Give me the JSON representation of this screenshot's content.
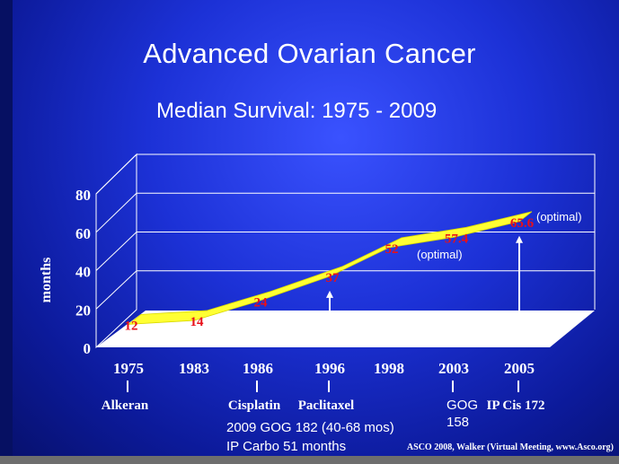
{
  "title": "Advanced Ovarian Cancer",
  "subtitle": "Median Survival: 1975 - 2009",
  "footnote": {
    "line1": "2009 GOG 182 (40-68 mos)",
    "line2": "IP Carbo 51 months"
  },
  "citation": "ASCO 2008, Walker (Virtual Meeting, www.Asco.org)",
  "colors": {
    "background": "#1c31d6",
    "ribbon": "#ffff33",
    "floor": "#ffffff",
    "value_labels": "#e8101a",
    "text": "#ffffff"
  },
  "chart_data": {
    "type": "area",
    "style": "3d ribbon",
    "categories": [
      "1975",
      "1983",
      "1986",
      "1996",
      "1998",
      "2003",
      "2005"
    ],
    "values": [
      12,
      14,
      24,
      37,
      52,
      57.4,
      65.6
    ],
    "value_labels": [
      "12",
      "14",
      "24",
      "37",
      "52",
      "57.4",
      "65.6"
    ],
    "ylabel": "months",
    "ylim": [
      0,
      80
    ],
    "yticks": [
      "0",
      "20",
      "40",
      "60",
      "80"
    ],
    "grid": true,
    "drugs": [
      {
        "category": "1975",
        "label": "Alkeran"
      },
      {
        "category": "1986",
        "label": "Cisplatin"
      },
      {
        "category": "1996",
        "label": "Paclitaxel"
      },
      {
        "category": "2003",
        "label": "GOG\n158"
      },
      {
        "category": "2005",
        "label": "IP Cis 172"
      }
    ],
    "annotations": [
      {
        "text": "(optimal)",
        "category": "2005"
      },
      {
        "text": "(optimal)",
        "category": "2003"
      }
    ],
    "arrows": [
      "1996",
      "2005"
    ]
  }
}
